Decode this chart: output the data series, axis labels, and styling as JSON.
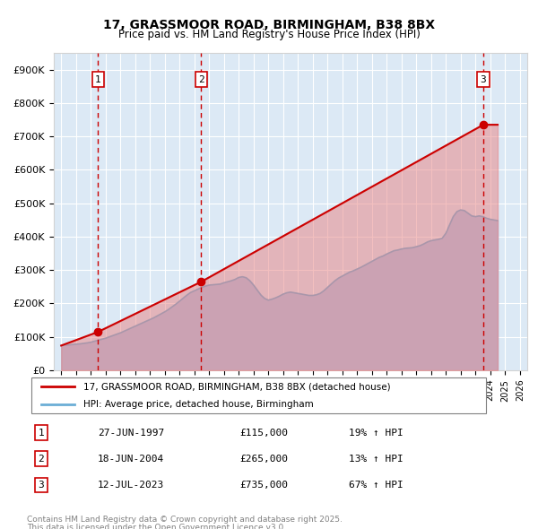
{
  "title": "17, GRASSMOOR ROAD, BIRMINGHAM, B38 8BX",
  "subtitle": "Price paid vs. HM Land Registry's House Price Index (HPI)",
  "legend_line1": "17, GRASSMOOR ROAD, BIRMINGHAM, B38 8BX (detached house)",
  "legend_line2": "HPI: Average price, detached house, Birmingham",
  "footer1": "Contains HM Land Registry data © Crown copyright and database right 2025.",
  "footer2": "This data is licensed under the Open Government Licence v3.0.",
  "transactions": [
    {
      "num": 1,
      "date": "27-JUN-1997",
      "price": 115000,
      "hpi_pct": "19% ↑ HPI",
      "x": 1997.49
    },
    {
      "num": 2,
      "date": "18-JUN-2004",
      "price": 265000,
      "hpi_pct": "13% ↑ HPI",
      "x": 2004.46
    },
    {
      "num": 3,
      "date": "12-JUL-2023",
      "price": 735000,
      "hpi_pct": "67% ↑ HPI",
      "x": 2023.53
    }
  ],
  "hpi_color": "#aec6e8",
  "price_color": "#cc0000",
  "dashed_color": "#cc0000",
  "background_color": "#dce9f5",
  "plot_bg": "#dce9f5",
  "ylim": [
    0,
    950000
  ],
  "xlim": [
    1994.5,
    2026.5
  ],
  "yticks": [
    0,
    100000,
    200000,
    300000,
    400000,
    500000,
    600000,
    700000,
    800000,
    900000
  ],
  "xticks": [
    1995,
    1996,
    1997,
    1998,
    1999,
    2000,
    2001,
    2002,
    2003,
    2004,
    2005,
    2006,
    2007,
    2008,
    2009,
    2010,
    2011,
    2012,
    2013,
    2014,
    2015,
    2016,
    2017,
    2018,
    2019,
    2020,
    2021,
    2022,
    2023,
    2024,
    2025,
    2026
  ],
  "hpi_data_x": [
    1995,
    1995.25,
    1995.5,
    1995.75,
    1996,
    1996.25,
    1996.5,
    1996.75,
    1997,
    1997.25,
    1997.5,
    1997.75,
    1998,
    1998.25,
    1998.5,
    1998.75,
    1999,
    1999.25,
    1999.5,
    1999.75,
    2000,
    2000.25,
    2000.5,
    2000.75,
    2001,
    2001.25,
    2001.5,
    2001.75,
    2002,
    2002.25,
    2002.5,
    2002.75,
    2003,
    2003.25,
    2003.5,
    2003.75,
    2004,
    2004.25,
    2004.5,
    2004.75,
    2005,
    2005.25,
    2005.5,
    2005.75,
    2006,
    2006.25,
    2006.5,
    2006.75,
    2007,
    2007.25,
    2007.5,
    2007.75,
    2008,
    2008.25,
    2008.5,
    2008.75,
    2009,
    2009.25,
    2009.5,
    2009.75,
    2010,
    2010.25,
    2010.5,
    2010.75,
    2011,
    2011.25,
    2011.5,
    2011.75,
    2012,
    2012.25,
    2012.5,
    2012.75,
    2013,
    2013.25,
    2013.5,
    2013.75,
    2014,
    2014.25,
    2014.5,
    2014.75,
    2015,
    2015.25,
    2015.5,
    2015.75,
    2016,
    2016.25,
    2016.5,
    2016.75,
    2017,
    2017.25,
    2017.5,
    2017.75,
    2018,
    2018.25,
    2018.5,
    2018.75,
    2019,
    2019.25,
    2019.5,
    2019.75,
    2020,
    2020.25,
    2020.5,
    2020.75,
    2021,
    2021.25,
    2021.5,
    2021.75,
    2022,
    2022.25,
    2022.5,
    2022.75,
    2023,
    2023.25,
    2023.5,
    2023.75,
    2024,
    2024.25,
    2024.5
  ],
  "hpi_data_y": [
    74000,
    75000,
    76000,
    77000,
    78000,
    79000,
    80500,
    82000,
    84000,
    87000,
    90000,
    93000,
    96000,
    100000,
    104000,
    108000,
    112000,
    117000,
    122000,
    127000,
    132000,
    137000,
    142000,
    147000,
    152000,
    157000,
    163000,
    169000,
    175000,
    182000,
    190000,
    198000,
    207000,
    216000,
    225000,
    233000,
    238000,
    243000,
    248000,
    252000,
    255000,
    256000,
    257000,
    258000,
    262000,
    265000,
    268000,
    272000,
    278000,
    280000,
    277000,
    268000,
    255000,
    240000,
    225000,
    215000,
    210000,
    213000,
    217000,
    222000,
    228000,
    232000,
    234000,
    232000,
    230000,
    228000,
    226000,
    224000,
    224000,
    226000,
    230000,
    238000,
    248000,
    258000,
    268000,
    276000,
    282000,
    288000,
    294000,
    298000,
    303000,
    308000,
    314000,
    320000,
    326000,
    332000,
    338000,
    342000,
    348000,
    353000,
    358000,
    360000,
    363000,
    365000,
    366000,
    367000,
    370000,
    373000,
    378000,
    384000,
    388000,
    390000,
    392000,
    395000,
    410000,
    435000,
    460000,
    475000,
    480000,
    478000,
    470000,
    462000,
    460000,
    462000,
    460000,
    455000,
    452000,
    450000,
    448000
  ],
  "price_data_x": [
    1995,
    1997.49,
    2004.46,
    2023.53,
    2024.5
  ],
  "price_data_y": [
    74000,
    115000,
    265000,
    735000,
    735000
  ]
}
